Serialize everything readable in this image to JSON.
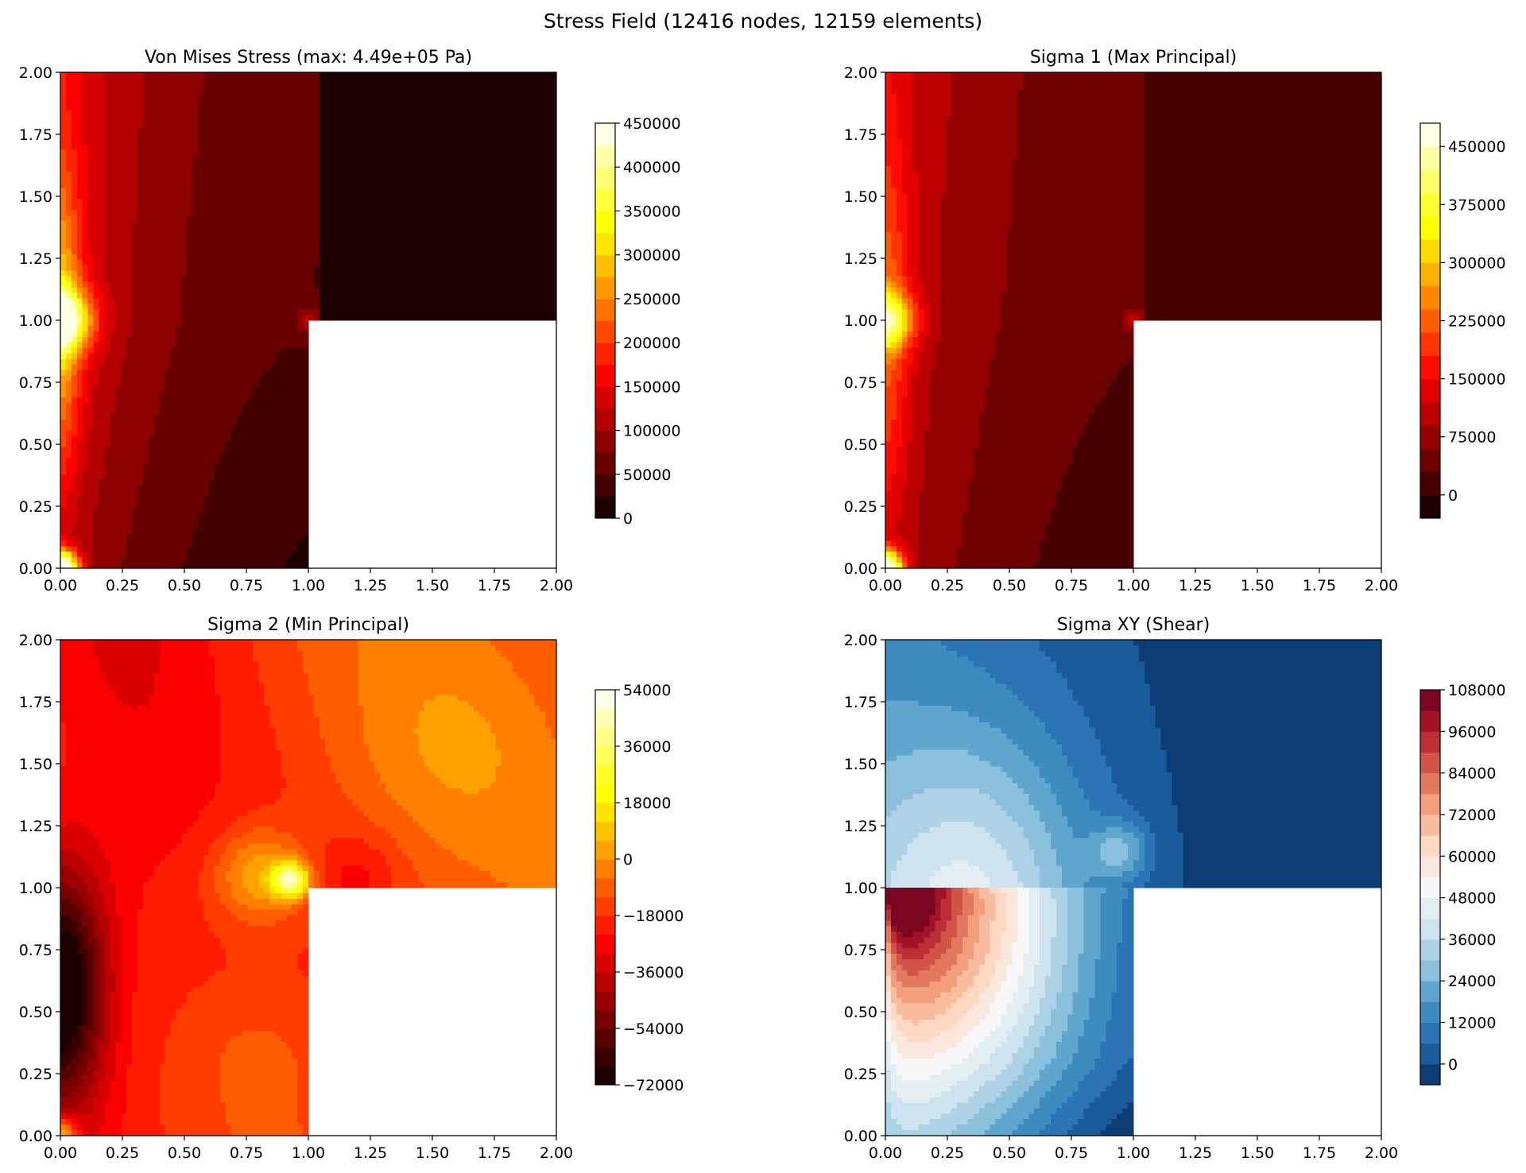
{
  "figure": {
    "title": "Stress Field (12416 nodes, 12159 elements)"
  },
  "chart_data": [
    {
      "type": "contour",
      "title": "Von Mises Stress (max: 4.49e+05 Pa)",
      "xlabel": "",
      "ylabel": "",
      "xlim": [
        0,
        2
      ],
      "ylim": [
        0,
        2
      ],
      "xticks": [
        "0.00",
        "0.25",
        "0.50",
        "0.75",
        "1.00",
        "1.25",
        "1.50",
        "1.75",
        "2.00"
      ],
      "yticks": [
        "0.00",
        "0.25",
        "0.50",
        "0.75",
        "1.00",
        "1.25",
        "1.50",
        "1.75",
        "2.00"
      ],
      "domain_excluded_region": {
        "x": [
          1,
          2
        ],
        "y": [
          0,
          1
        ]
      },
      "colormap": "hot",
      "colorbar": {
        "min": 0,
        "max": 450000,
        "ticks": [
          "0",
          "50000",
          "100000",
          "150000",
          "200000",
          "250000",
          "300000",
          "350000",
          "400000",
          "450000"
        ],
        "tick_values": [
          0,
          50000,
          100000,
          150000,
          200000,
          250000,
          300000,
          350000,
          400000,
          450000
        ],
        "levels": 18
      },
      "max_value": 449000,
      "hotspots": [
        [
          0,
          1
        ],
        [
          0,
          0
        ],
        [
          1,
          1
        ]
      ]
    },
    {
      "type": "contour",
      "title": "Sigma 1 (Max Principal)",
      "xlabel": "",
      "ylabel": "",
      "xlim": [
        0,
        2
      ],
      "ylim": [
        0,
        2
      ],
      "xticks": [
        "0.00",
        "0.25",
        "0.50",
        "0.75",
        "1.00",
        "1.25",
        "1.50",
        "1.75",
        "2.00"
      ],
      "yticks": [
        "0.00",
        "0.25",
        "0.50",
        "0.75",
        "1.00",
        "1.25",
        "1.50",
        "1.75",
        "2.00"
      ],
      "domain_excluded_region": {
        "x": [
          1,
          2
        ],
        "y": [
          0,
          1
        ]
      },
      "colormap": "hot",
      "colorbar": {
        "min": -30000,
        "max": 480000,
        "ticks": [
          "0",
          "75000",
          "150000",
          "225000",
          "300000",
          "375000",
          "450000"
        ],
        "tick_values": [
          0,
          75000,
          150000,
          225000,
          300000,
          375000,
          450000
        ],
        "levels": 17
      },
      "hotspots": [
        [
          0,
          1
        ],
        [
          0,
          0
        ],
        [
          1,
          1
        ]
      ]
    },
    {
      "type": "contour",
      "title": "Sigma 2 (Min Principal)",
      "xlabel": "",
      "ylabel": "",
      "xlim": [
        0,
        2
      ],
      "ylim": [
        0,
        2
      ],
      "xticks": [
        "0.00",
        "0.25",
        "0.50",
        "0.75",
        "1.00",
        "1.25",
        "1.50",
        "1.75",
        "2.00"
      ],
      "yticks": [
        "0.00",
        "0.25",
        "0.50",
        "0.75",
        "1.00",
        "1.25",
        "1.50",
        "1.75",
        "2.00"
      ],
      "domain_excluded_region": {
        "x": [
          1,
          2
        ],
        "y": [
          0,
          1
        ]
      },
      "colormap": "hot",
      "colorbar": {
        "min": -72000,
        "max": 54000,
        "ticks": [
          "−72000",
          "−54000",
          "−36000",
          "−18000",
          "0",
          "18000",
          "36000",
          "54000"
        ],
        "tick_values": [
          -72000,
          -54000,
          -36000,
          -18000,
          0,
          18000,
          36000,
          54000
        ],
        "levels": 21
      },
      "hotspots": [
        [
          0.93,
          1.03
        ],
        [
          0,
          0.6
        ],
        [
          0,
          0
        ]
      ]
    },
    {
      "type": "contour",
      "title": "Sigma XY (Shear)",
      "xlabel": "",
      "ylabel": "",
      "xlim": [
        0,
        2
      ],
      "ylim": [
        0,
        2
      ],
      "xticks": [
        "0.00",
        "0.25",
        "0.50",
        "0.75",
        "1.00",
        "1.25",
        "1.50",
        "1.75",
        "2.00"
      ],
      "yticks": [
        "0.00",
        "0.25",
        "0.50",
        "0.75",
        "1.00",
        "1.25",
        "1.50",
        "1.75",
        "2.00"
      ],
      "domain_excluded_region": {
        "x": [
          1,
          2
        ],
        "y": [
          0,
          1
        ]
      },
      "colormap": "RdBu_r",
      "colorbar": {
        "min": -6000,
        "max": 108000,
        "ticks": [
          "0",
          "12000",
          "24000",
          "36000",
          "48000",
          "60000",
          "72000",
          "84000",
          "96000",
          "108000"
        ],
        "tick_values": [
          0,
          12000,
          24000,
          36000,
          48000,
          60000,
          72000,
          84000,
          96000,
          108000
        ],
        "levels": 19
      },
      "hotspots": [
        [
          0,
          0.3
        ],
        [
          1,
          1
        ]
      ]
    }
  ]
}
